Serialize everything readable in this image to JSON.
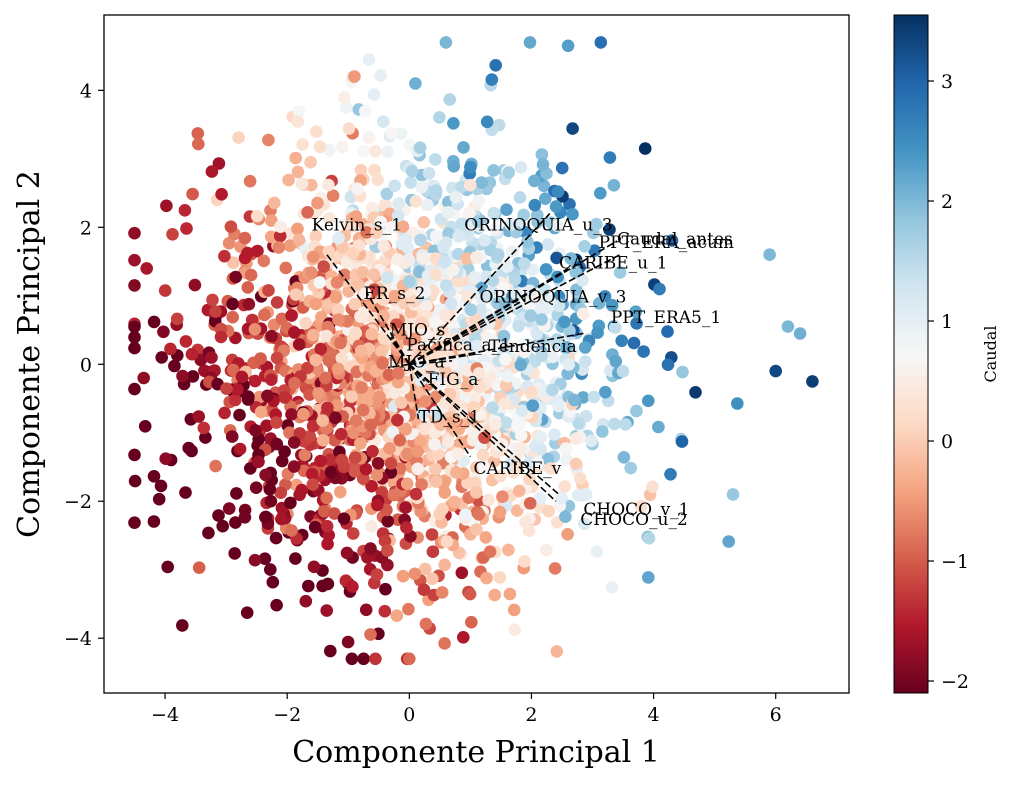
{
  "chart_data": {
    "type": "scatter",
    "title": "",
    "xlabel": "Componente Principal 1",
    "ylabel": "Componente Principal 2",
    "xlim": [
      -5.0,
      7.2
    ],
    "ylim": [
      -4.8,
      5.1
    ],
    "xticks": [
      -4,
      -2,
      0,
      2,
      4,
      6
    ],
    "yticks": [
      -4,
      -2,
      0,
      2,
      4
    ],
    "grid": false,
    "legend": "none",
    "colorbar": {
      "label": "Caudal",
      "range": [
        -2.1,
        3.55
      ],
      "ticks": [
        -2,
        -1,
        0,
        1,
        2,
        3
      ],
      "colormap": "RdBu"
    },
    "colormap_stops": [
      "#67001f",
      "#b2182b",
      "#d6604d",
      "#f4a582",
      "#fddbc7",
      "#f7f7f7",
      "#d1e5f0",
      "#92c5de",
      "#4393c3",
      "#2166ac",
      "#053061"
    ],
    "point_summary": {
      "count": 2200,
      "center": [
        0.0,
        0.0
      ],
      "spread": [
        2.0,
        1.5
      ],
      "x_range": [
        -4.5,
        6.6
      ],
      "y_range": [
        -4.3,
        4.7
      ]
    },
    "highlight_points": [
      {
        "x": 6.6,
        "y": -0.25,
        "c": 3.4
      },
      {
        "x": 6.0,
        "y": -0.1,
        "c": 3.3
      },
      {
        "x": 6.4,
        "y": 0.45,
        "c": 2.1
      },
      {
        "x": 6.2,
        "y": 0.55,
        "c": 2.0
      },
      {
        "x": 2.6,
        "y": 4.65,
        "c": 2.3
      },
      {
        "x": -0.9,
        "y": 4.2,
        "c": -0.5
      },
      {
        "x": 0.1,
        "y": 4.1,
        "c": 2.1
      },
      {
        "x": 0.0,
        "y": -4.3,
        "c": -0.9
      },
      {
        "x": -4.3,
        "y": 1.4,
        "c": -1.6
      },
      {
        "x": -4.35,
        "y": -0.2,
        "c": -1.8
      },
      {
        "x": 5.9,
        "y": 1.6,
        "c": 2.0
      },
      {
        "x": 5.3,
        "y": -1.9,
        "c": 1.8
      }
    ],
    "loadings": [
      {
        "name": "Kelvin_s_1",
        "x": -1.35,
        "y": 1.6,
        "label_x": -1.6,
        "label_y": 1.95
      },
      {
        "name": "ORINOQUIA_u_3",
        "x": 2.3,
        "y": 2.2,
        "label_x": 0.9,
        "label_y": 1.95
      },
      {
        "name": "Caudal_antes",
        "x": 3.4,
        "y": 1.8,
        "label_x": 3.4,
        "label_y": 1.75
      },
      {
        "name": "PPT_ERA_acum",
        "x": 3.45,
        "y": 1.6,
        "label_x": 3.1,
        "label_y": 1.7
      },
      {
        "name": "CARIBE_u_1",
        "x": 2.6,
        "y": 1.4,
        "label_x": 2.45,
        "label_y": 1.4
      },
      {
        "name": "ER_s_2",
        "x": -0.7,
        "y": 1.05,
        "label_x": -0.75,
        "label_y": 0.95
      },
      {
        "name": "ORINOQUIA_v_3",
        "x": 1.9,
        "y": 0.95,
        "label_x": 1.15,
        "label_y": 0.9
      },
      {
        "name": "PPT_ERA5_1",
        "x": 2.85,
        "y": 0.45,
        "label_x": 3.3,
        "label_y": 0.6
      },
      {
        "name": "MJO_s",
        "x": -0.3,
        "y": 0.4,
        "label_x": -0.32,
        "label_y": 0.42
      },
      {
        "name": "Tendencia",
        "x": 1.1,
        "y": 0.15,
        "label_x": 1.3,
        "label_y": 0.18
      },
      {
        "name": "Pacífica_a_1",
        "x": 0.7,
        "y": 0.05,
        "label_x": -0.05,
        "label_y": 0.2
      },
      {
        "name": "MJO_a",
        "x": -0.35,
        "y": -0.05,
        "label_x": -0.35,
        "label_y": -0.05
      },
      {
        "name": "FIG_a",
        "x": 0.25,
        "y": -0.25,
        "label_x": 0.3,
        "label_y": -0.3
      },
      {
        "name": "TD_s_1",
        "x": 0.15,
        "y": -0.8,
        "label_x": 0.15,
        "label_y": -0.85
      },
      {
        "name": "CARIBE_v",
        "x": 1.0,
        "y": -1.35,
        "label_x": 1.05,
        "label_y": -1.6
      },
      {
        "name": "CHOCO_v_1",
        "x": 2.45,
        "y": -1.9,
        "label_x": 2.85,
        "label_y": -2.2
      },
      {
        "name": "CHOCO_u_2",
        "x": 2.4,
        "y": -2.0,
        "label_x": 2.8,
        "label_y": -2.35
      }
    ]
  }
}
